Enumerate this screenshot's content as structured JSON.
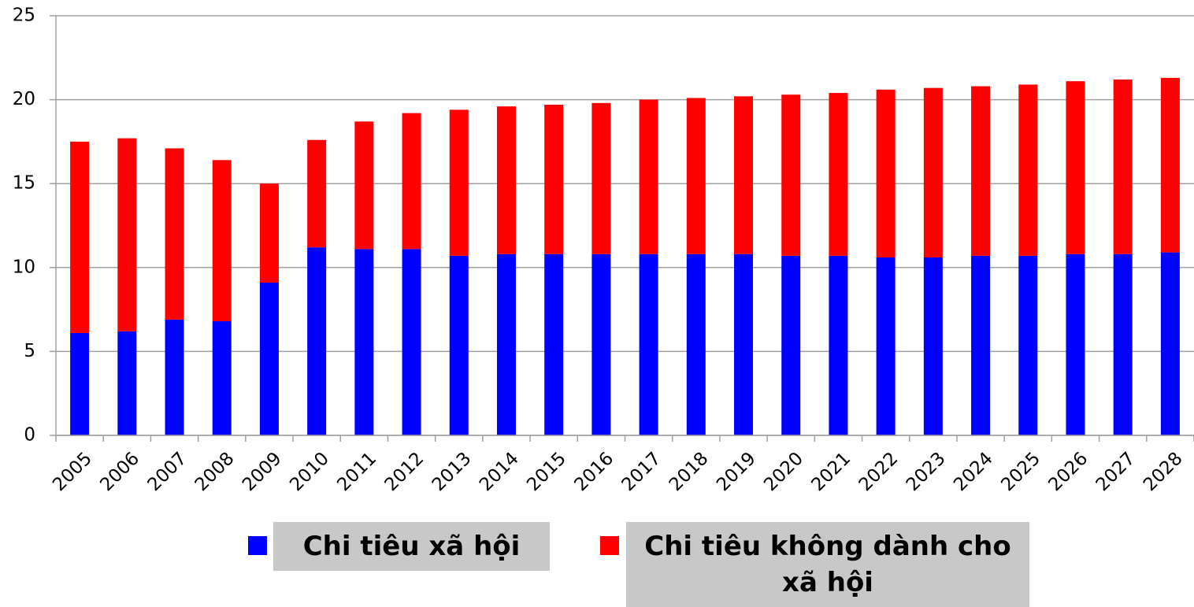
{
  "chart_data": {
    "type": "stacked-bar",
    "categories": [
      "2005",
      "2006",
      "2007",
      "2008",
      "2009",
      "2010",
      "2011",
      "2012",
      "2013",
      "2014",
      "2015",
      "2016",
      "2017",
      "2018",
      "2019",
      "2020",
      "2021",
      "2022",
      "2023",
      "2024",
      "2025",
      "2026",
      "2027",
      "2028"
    ],
    "series": [
      {
        "name": "Chi tiêu xã hội",
        "color": "#0000ff",
        "values": [
          6.1,
          6.2,
          6.9,
          6.8,
          9.1,
          11.2,
          11.1,
          11.1,
          10.7,
          10.8,
          10.8,
          10.8,
          10.8,
          10.8,
          10.8,
          10.7,
          10.7,
          10.6,
          10.6,
          10.7,
          10.7,
          10.8,
          10.8,
          10.9
        ]
      },
      {
        "name": "Chi tiêu không dành cho xã hội",
        "color": "#ff0000",
        "values": [
          11.4,
          11.5,
          10.2,
          9.6,
          5.9,
          6.4,
          7.6,
          8.1,
          8.7,
          8.8,
          8.9,
          9.0,
          9.2,
          9.3,
          9.4,
          9.6,
          9.7,
          10.0,
          10.1,
          10.1,
          10.2,
          10.3,
          10.4,
          10.4
        ]
      }
    ],
    "ylim": [
      0,
      25
    ],
    "yticks": [
      0,
      5,
      10,
      15,
      20,
      25
    ],
    "grid": true,
    "legend": "bottom"
  }
}
